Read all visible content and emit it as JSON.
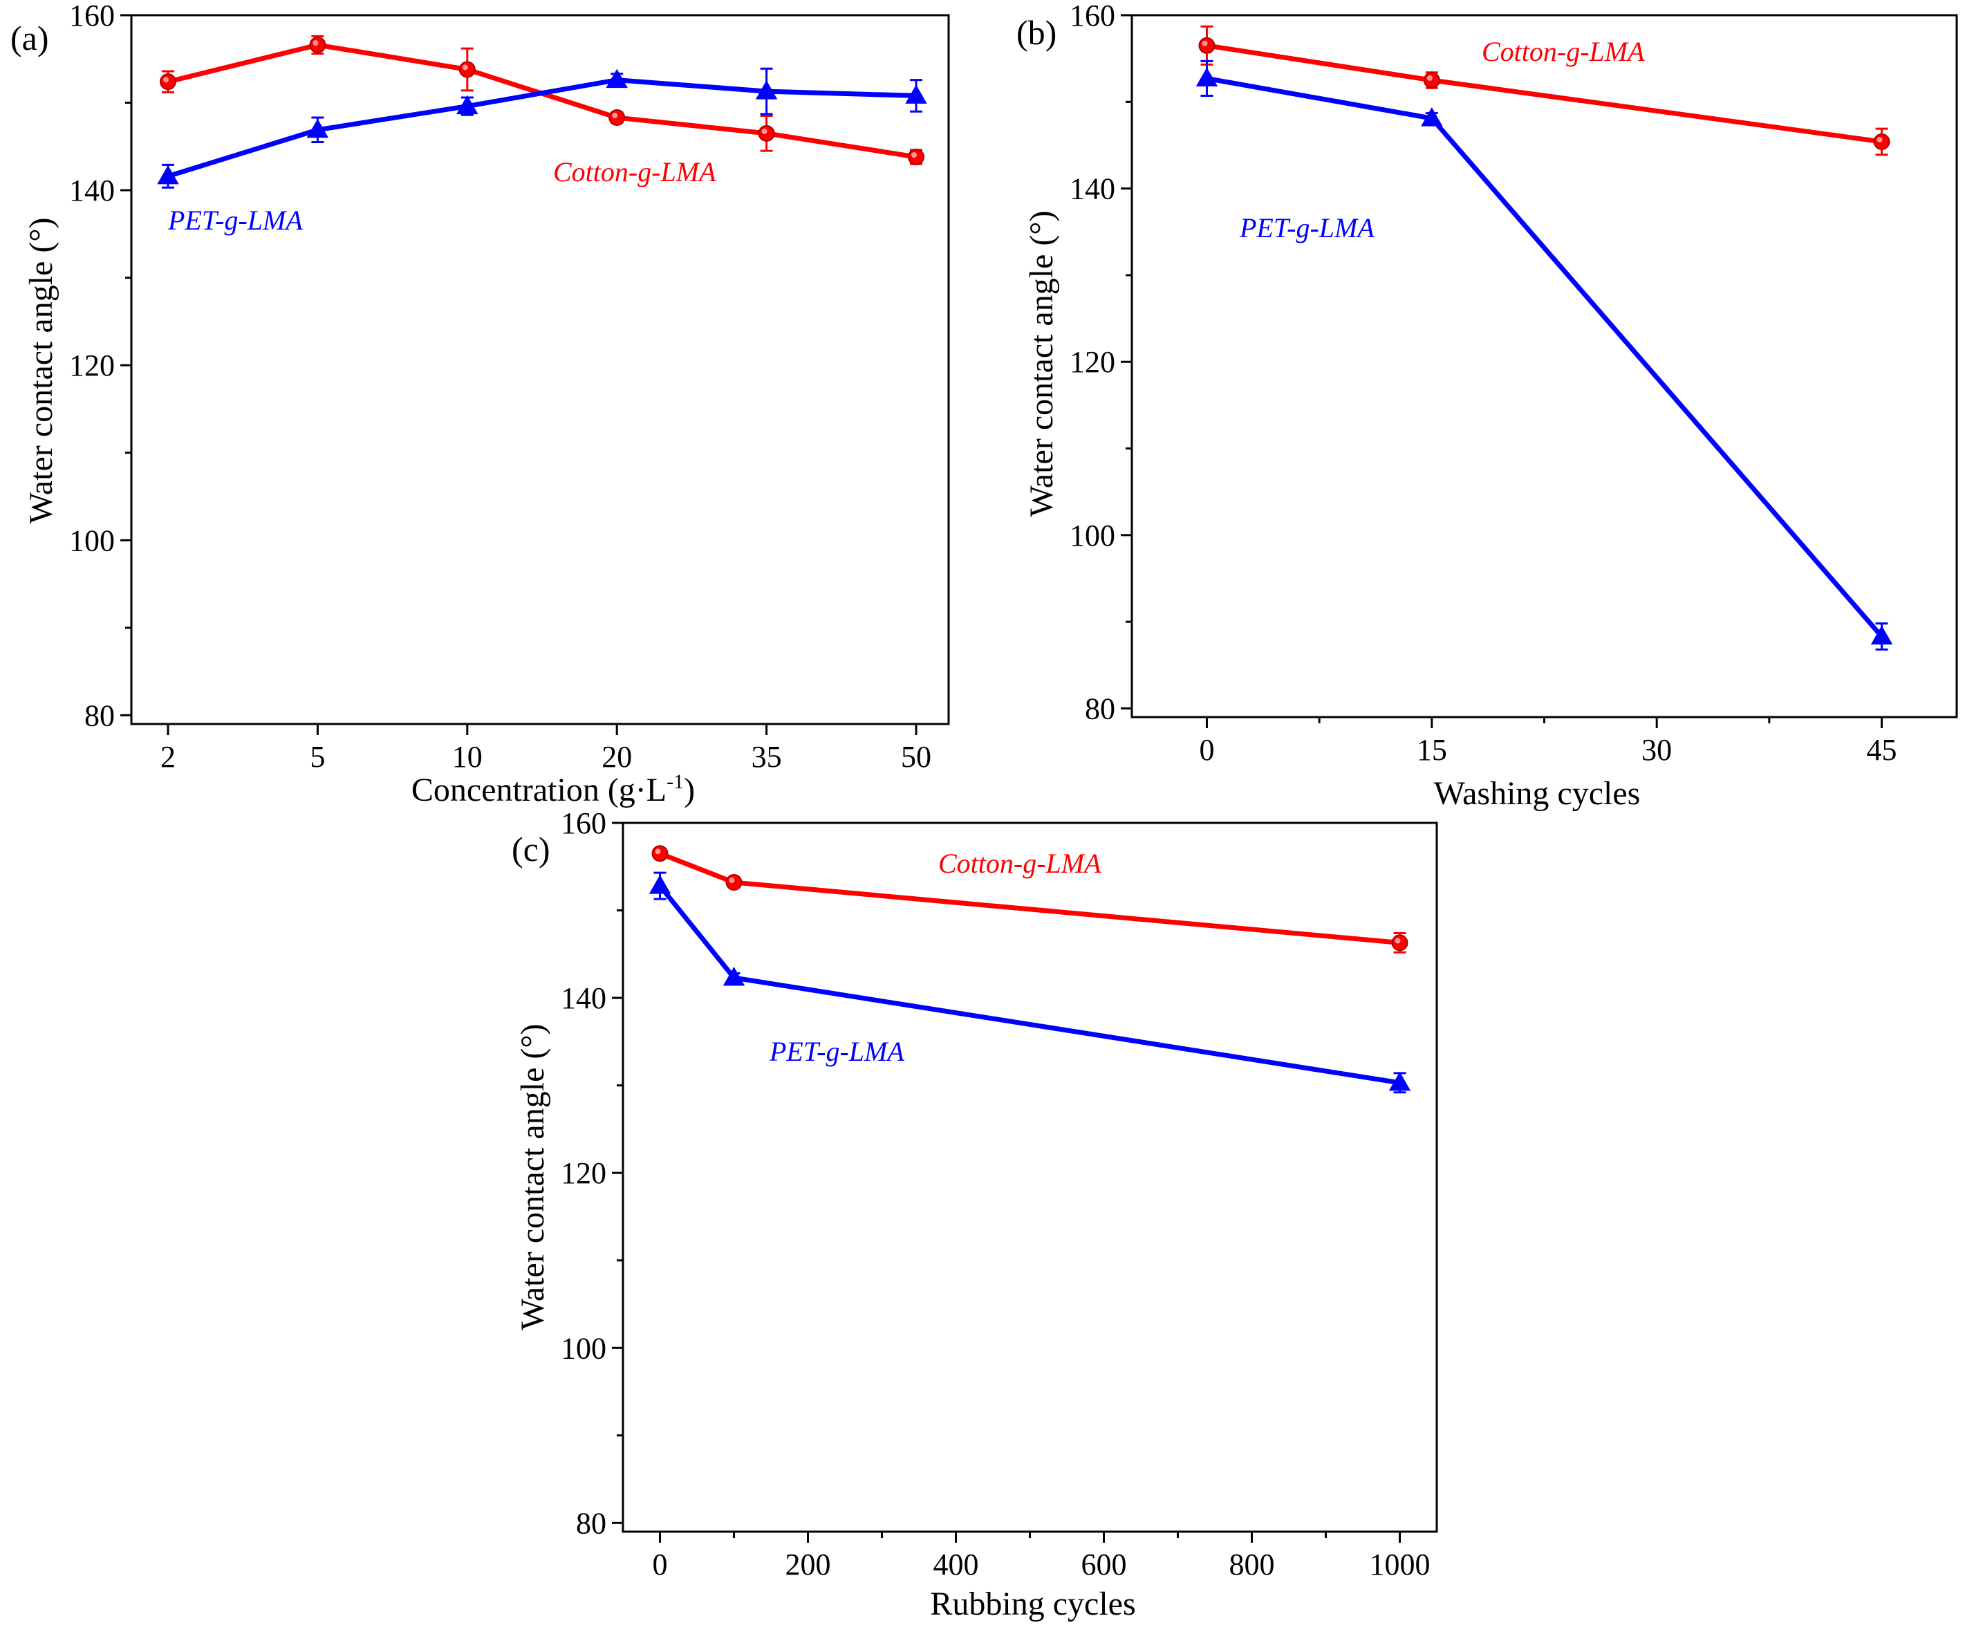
{
  "chart_data": [
    {
      "panel_label": "(a)",
      "type": "line",
      "xaxis_type": "category",
      "categories": [
        "2",
        "5",
        "10",
        "20",
        "35",
        "50"
      ],
      "xlabel": {
        "main": "Concentration (g·L",
        "sup": "-1",
        "end": ")"
      },
      "ylabel": "Water contact angle (°)",
      "ylim": [
        79,
        160
      ],
      "yticks": [
        80,
        100,
        120,
        140,
        160
      ],
      "series": [
        {
          "name": "Cotton-g-LMA",
          "color": "#ff0000",
          "marker": "circle",
          "values": [
            152.4,
            156.6,
            153.8,
            148.3,
            146.5,
            143.8
          ],
          "errors": [
            1.2,
            1.0,
            2.4,
            0.6,
            2.0,
            0.8
          ]
        },
        {
          "name": "PET-g-LMA",
          "color": "#0000ff",
          "marker": "triangle",
          "values": [
            141.6,
            146.9,
            149.6,
            152.6,
            151.3,
            150.8
          ],
          "errors": [
            1.3,
            1.4,
            1.0,
            0.7,
            2.6,
            1.8
          ]
        }
      ]
    },
    {
      "panel_label": "(b)",
      "type": "line",
      "xaxis_type": "linear",
      "x": [
        0,
        15,
        45
      ],
      "xlim": [
        -5,
        50
      ],
      "xticks": [
        0,
        15,
        30,
        45
      ],
      "xlabel": {
        "main": "Washing cycles",
        "sup": "",
        "end": ""
      },
      "ylabel": "Water contact angle (°)",
      "ylim": [
        79,
        160
      ],
      "yticks": [
        80,
        100,
        120,
        140,
        160
      ],
      "series": [
        {
          "name": "Cotton-g-LMA",
          "color": "#ff0000",
          "marker": "circle",
          "values": [
            156.5,
            152.5,
            145.4
          ],
          "errors": [
            2.2,
            0.9,
            1.5
          ]
        },
        {
          "name": "PET-g-LMA",
          "color": "#0000ff",
          "marker": "triangle",
          "values": [
            152.7,
            148.1,
            88.3
          ],
          "errors": [
            2.0,
            0.6,
            1.5
          ]
        }
      ]
    },
    {
      "panel_label": "(c)",
      "type": "line",
      "xaxis_type": "linear",
      "x": [
        0,
        100,
        1000
      ],
      "xlim": [
        -50,
        1050
      ],
      "xticks": [
        0,
        200,
        400,
        600,
        800,
        1000
      ],
      "xlabel": {
        "main": "Rubbing cycles",
        "sup": "",
        "end": ""
      },
      "ylabel": "Water contact angle (°)",
      "ylim": [
        79,
        160
      ],
      "yticks": [
        80,
        100,
        120,
        140,
        160
      ],
      "series": [
        {
          "name": "Cotton-g-LMA",
          "color": "#ff0000",
          "marker": "circle",
          "values": [
            156.5,
            153.2,
            146.3
          ],
          "errors": [
            0.4,
            0.3,
            1.1
          ]
        },
        {
          "name": "PET-g-LMA",
          "color": "#0000ff",
          "marker": "triangle",
          "values": [
            152.8,
            142.3,
            130.3
          ],
          "errors": [
            1.5,
            0.5,
            1.1
          ]
        }
      ]
    }
  ]
}
